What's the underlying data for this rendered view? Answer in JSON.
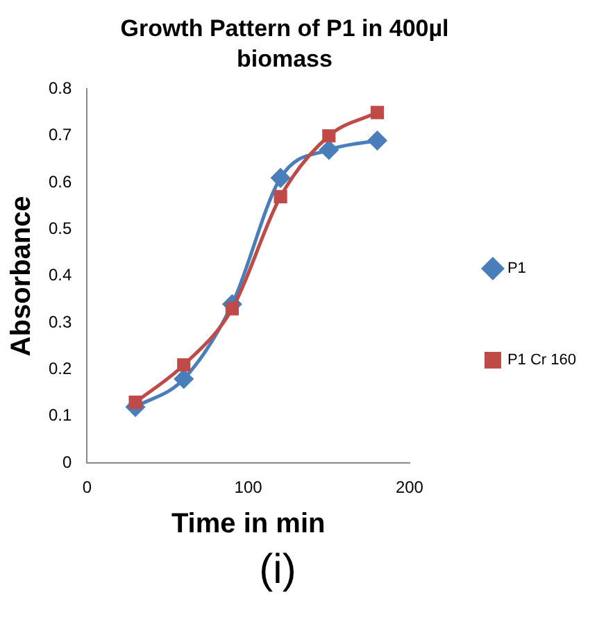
{
  "chart_data": {
    "type": "line",
    "title": "Growth Pattern of P1 in 400µl biomass",
    "xlabel": "Time in min",
    "ylabel": "Absorbance",
    "x": [
      30,
      60,
      90,
      120,
      150,
      180
    ],
    "series": [
      {
        "name": "P1",
        "color": "#4a7ebb",
        "marker": "diamond",
        "values": [
          0.12,
          0.18,
          0.34,
          0.61,
          0.67,
          0.69
        ]
      },
      {
        "name": "P1 Cr 160",
        "color": "#be4b48",
        "marker": "square",
        "values": [
          0.13,
          0.21,
          0.33,
          0.57,
          0.7,
          0.75
        ]
      }
    ],
    "xlim": [
      0,
      200
    ],
    "xticks": [
      0,
      100,
      200
    ],
    "ylim": [
      0,
      0.8
    ],
    "yticks": [
      0,
      0.1,
      0.2,
      0.3,
      0.4,
      0.5,
      0.6,
      0.7,
      0.8
    ],
    "grid": false,
    "legend": "right",
    "annotations": [
      "(i)"
    ]
  }
}
